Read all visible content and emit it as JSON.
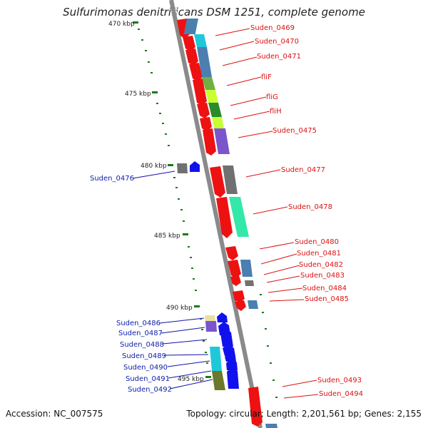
{
  "title": "Sulfurimonas denitrificans DSM 1251, complete genome",
  "accession_text": "Accession: NC_007575",
  "topology_text": "Topology: circular; Length: 2,201,561 bp; Genes: 2,155",
  "ruler_labels": [
    "470 kbp",
    "475 kbp",
    "480 kbp",
    "485 kbp",
    "490 kbp",
    "495 kbp"
  ],
  "colors": {
    "forward_label": "#d11111",
    "reverse_label": "#1122aa",
    "ruler": "#1a7a1a",
    "backbone": "#8a8a8a"
  },
  "forward_genes": [
    "Suden_0469",
    "Suden_0470",
    "Suden_0471",
    "fliF",
    "fliG",
    "fliH",
    "Suden_0475",
    "Suden_0477",
    "Suden_0478",
    "Suden_0480",
    "Suden_0481",
    "Suden_0482",
    "Suden_0483",
    "Suden_0484",
    "Suden_0485",
    "Suden_0493",
    "Suden_0494"
  ],
  "reverse_genes": [
    "Suden_0476",
    "Suden_0486",
    "Suden_0487",
    "Suden_0488",
    "Suden_0489",
    "Suden_0490",
    "Suden_0491",
    "Suden_0492"
  ]
}
